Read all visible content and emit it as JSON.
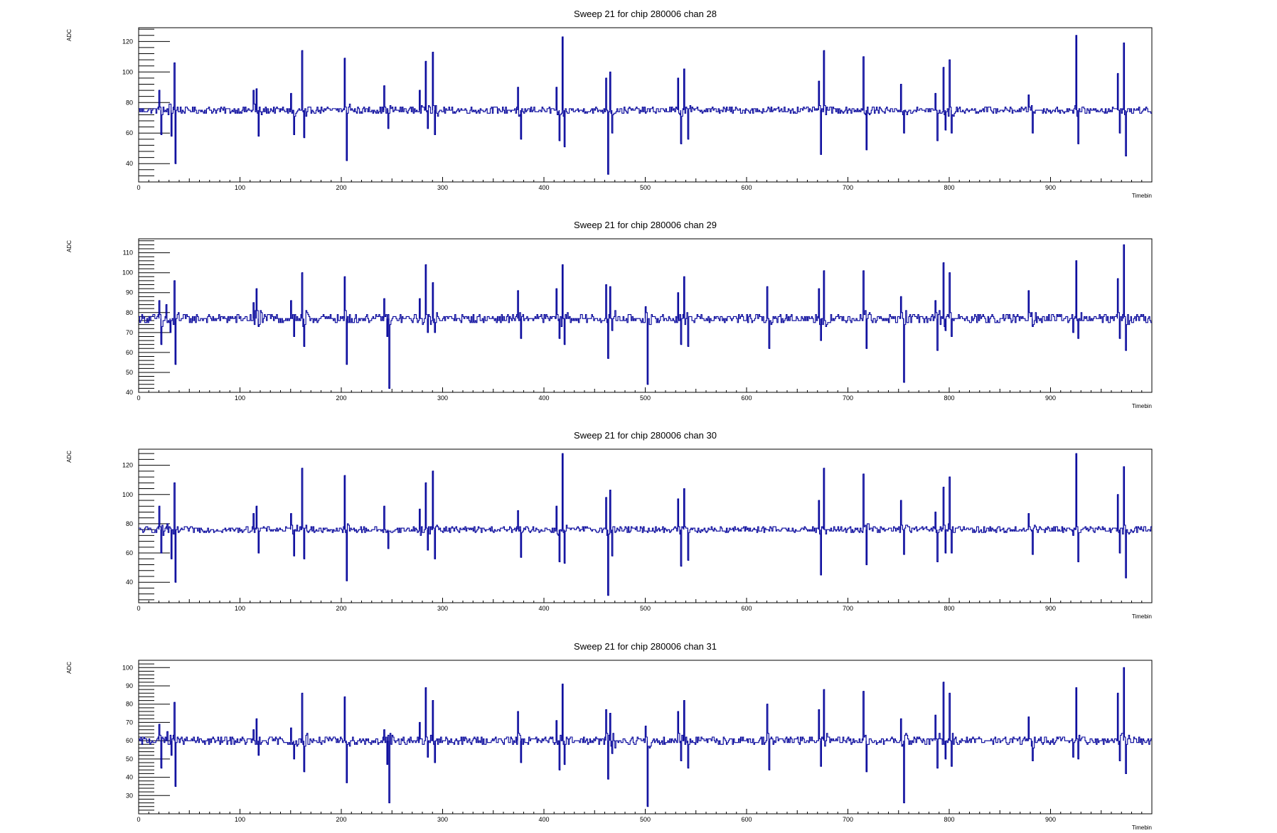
{
  "page": {
    "background": "#ffffff",
    "line_color": "#000099"
  },
  "chart_data": [
    {
      "type": "line",
      "title": "Sweep 21 for chip 280006 chan 28",
      "xlabel": "Timebin",
      "ylabel": "ADC",
      "xlim": [
        0,
        1000
      ],
      "ylim": [
        28,
        129
      ],
      "xticks": [
        0,
        100,
        200,
        300,
        400,
        500,
        600,
        700,
        800,
        900
      ],
      "yticks": [
        40,
        60,
        80,
        100,
        120
      ],
      "baseline": 75,
      "spikes": [
        {
          "x": 20,
          "y": 88
        },
        {
          "x": 22,
          "y": 59
        },
        {
          "x": 28,
          "y": 76
        },
        {
          "x": 32,
          "y": 58
        },
        {
          "x": 35,
          "y": 106
        },
        {
          "x": 36,
          "y": 40
        },
        {
          "x": 113,
          "y": 88
        },
        {
          "x": 116,
          "y": 89
        },
        {
          "x": 118,
          "y": 58
        },
        {
          "x": 150,
          "y": 86
        },
        {
          "x": 153,
          "y": 59
        },
        {
          "x": 161,
          "y": 114
        },
        {
          "x": 163,
          "y": 57
        },
        {
          "x": 203,
          "y": 109
        },
        {
          "x": 205,
          "y": 42
        },
        {
          "x": 242,
          "y": 91
        },
        {
          "x": 246,
          "y": 63
        },
        {
          "x": 277,
          "y": 88
        },
        {
          "x": 283,
          "y": 107
        },
        {
          "x": 285,
          "y": 63
        },
        {
          "x": 290,
          "y": 113
        },
        {
          "x": 292,
          "y": 59
        },
        {
          "x": 374,
          "y": 90
        },
        {
          "x": 377,
          "y": 56
        },
        {
          "x": 412,
          "y": 90
        },
        {
          "x": 415,
          "y": 55
        },
        {
          "x": 418,
          "y": 123
        },
        {
          "x": 420,
          "y": 51
        },
        {
          "x": 461,
          "y": 96
        },
        {
          "x": 463,
          "y": 33
        },
        {
          "x": 465,
          "y": 100
        },
        {
          "x": 467,
          "y": 60
        },
        {
          "x": 532,
          "y": 96
        },
        {
          "x": 535,
          "y": 53
        },
        {
          "x": 538,
          "y": 102
        },
        {
          "x": 542,
          "y": 56
        },
        {
          "x": 671,
          "y": 94
        },
        {
          "x": 673,
          "y": 46
        },
        {
          "x": 676,
          "y": 114
        },
        {
          "x": 715,
          "y": 110
        },
        {
          "x": 718,
          "y": 49
        },
        {
          "x": 752,
          "y": 92
        },
        {
          "x": 755,
          "y": 60
        },
        {
          "x": 786,
          "y": 86
        },
        {
          "x": 788,
          "y": 55
        },
        {
          "x": 794,
          "y": 103
        },
        {
          "x": 796,
          "y": 62
        },
        {
          "x": 800,
          "y": 108
        },
        {
          "x": 802,
          "y": 60
        },
        {
          "x": 878,
          "y": 85
        },
        {
          "x": 882,
          "y": 60
        },
        {
          "x": 922,
          "y": 73
        },
        {
          "x": 925,
          "y": 124
        },
        {
          "x": 927,
          "y": 53
        },
        {
          "x": 966,
          "y": 99
        },
        {
          "x": 968,
          "y": 60
        },
        {
          "x": 972,
          "y": 119
        },
        {
          "x": 974,
          "y": 45
        }
      ]
    },
    {
      "type": "line",
      "title": "Sweep 21 for chip 280006 chan 29",
      "xlabel": "Timebin",
      "ylabel": "ADC",
      "xlim": [
        0,
        1000
      ],
      "ylim": [
        40,
        117
      ],
      "xticks": [
        0,
        100,
        200,
        300,
        400,
        500,
        600,
        700,
        800,
        900
      ],
      "yticks": [
        40,
        50,
        60,
        70,
        80,
        90,
        100,
        110
      ],
      "baseline": 77,
      "spikes": [
        {
          "x": 20,
          "y": 86
        },
        {
          "x": 22,
          "y": 64
        },
        {
          "x": 27,
          "y": 84
        },
        {
          "x": 31,
          "y": 70
        },
        {
          "x": 35,
          "y": 96
        },
        {
          "x": 36,
          "y": 54
        },
        {
          "x": 113,
          "y": 85
        },
        {
          "x": 116,
          "y": 92
        },
        {
          "x": 118,
          "y": 73
        },
        {
          "x": 150,
          "y": 86
        },
        {
          "x": 153,
          "y": 68
        },
        {
          "x": 161,
          "y": 100
        },
        {
          "x": 163,
          "y": 63
        },
        {
          "x": 203,
          "y": 98
        },
        {
          "x": 205,
          "y": 54
        },
        {
          "x": 242,
          "y": 87
        },
        {
          "x": 245,
          "y": 68
        },
        {
          "x": 247,
          "y": 42
        },
        {
          "x": 277,
          "y": 87
        },
        {
          "x": 283,
          "y": 104
        },
        {
          "x": 285,
          "y": 70
        },
        {
          "x": 290,
          "y": 95
        },
        {
          "x": 292,
          "y": 70
        },
        {
          "x": 374,
          "y": 91
        },
        {
          "x": 377,
          "y": 67
        },
        {
          "x": 412,
          "y": 92
        },
        {
          "x": 415,
          "y": 67
        },
        {
          "x": 418,
          "y": 104
        },
        {
          "x": 420,
          "y": 64
        },
        {
          "x": 461,
          "y": 94
        },
        {
          "x": 463,
          "y": 57
        },
        {
          "x": 465,
          "y": 93
        },
        {
          "x": 467,
          "y": 71
        },
        {
          "x": 500,
          "y": 83
        },
        {
          "x": 502,
          "y": 44
        },
        {
          "x": 532,
          "y": 90
        },
        {
          "x": 535,
          "y": 64
        },
        {
          "x": 538,
          "y": 98
        },
        {
          "x": 542,
          "y": 63
        },
        {
          "x": 620,
          "y": 93
        },
        {
          "x": 622,
          "y": 62
        },
        {
          "x": 671,
          "y": 92
        },
        {
          "x": 673,
          "y": 66
        },
        {
          "x": 676,
          "y": 101
        },
        {
          "x": 715,
          "y": 101
        },
        {
          "x": 718,
          "y": 62
        },
        {
          "x": 752,
          "y": 88
        },
        {
          "x": 755,
          "y": 45
        },
        {
          "x": 786,
          "y": 86
        },
        {
          "x": 788,
          "y": 61
        },
        {
          "x": 794,
          "y": 105
        },
        {
          "x": 796,
          "y": 71
        },
        {
          "x": 800,
          "y": 100
        },
        {
          "x": 802,
          "y": 68
        },
        {
          "x": 878,
          "y": 91
        },
        {
          "x": 882,
          "y": 73
        },
        {
          "x": 922,
          "y": 70
        },
        {
          "x": 925,
          "y": 106
        },
        {
          "x": 927,
          "y": 67
        },
        {
          "x": 966,
          "y": 97
        },
        {
          "x": 968,
          "y": 67
        },
        {
          "x": 972,
          "y": 114
        },
        {
          "x": 974,
          "y": 61
        }
      ]
    },
    {
      "type": "line",
      "title": "Sweep 21 for chip 280006 chan 30",
      "xlabel": "Timebin",
      "ylabel": "ADC",
      "xlim": [
        0,
        1000
      ],
      "ylim": [
        26,
        131
      ],
      "xticks": [
        0,
        100,
        200,
        300,
        400,
        500,
        600,
        700,
        800,
        900
      ],
      "yticks": [
        40,
        60,
        80,
        100,
        120
      ],
      "baseline": 76,
      "spikes": [
        {
          "x": 20,
          "y": 92
        },
        {
          "x": 22,
          "y": 60
        },
        {
          "x": 28,
          "y": 80
        },
        {
          "x": 32,
          "y": 56
        },
        {
          "x": 35,
          "y": 108
        },
        {
          "x": 36,
          "y": 40
        },
        {
          "x": 113,
          "y": 87
        },
        {
          "x": 116,
          "y": 92
        },
        {
          "x": 118,
          "y": 60
        },
        {
          "x": 150,
          "y": 87
        },
        {
          "x": 153,
          "y": 58
        },
        {
          "x": 161,
          "y": 118
        },
        {
          "x": 163,
          "y": 56
        },
        {
          "x": 203,
          "y": 113
        },
        {
          "x": 205,
          "y": 41
        },
        {
          "x": 242,
          "y": 92
        },
        {
          "x": 246,
          "y": 63
        },
        {
          "x": 277,
          "y": 90
        },
        {
          "x": 283,
          "y": 108
        },
        {
          "x": 285,
          "y": 62
        },
        {
          "x": 290,
          "y": 116
        },
        {
          "x": 292,
          "y": 56
        },
        {
          "x": 374,
          "y": 89
        },
        {
          "x": 377,
          "y": 57
        },
        {
          "x": 412,
          "y": 92
        },
        {
          "x": 415,
          "y": 54
        },
        {
          "x": 418,
          "y": 128
        },
        {
          "x": 420,
          "y": 53
        },
        {
          "x": 461,
          "y": 98
        },
        {
          "x": 463,
          "y": 31
        },
        {
          "x": 465,
          "y": 103
        },
        {
          "x": 467,
          "y": 58
        },
        {
          "x": 532,
          "y": 97
        },
        {
          "x": 535,
          "y": 51
        },
        {
          "x": 538,
          "y": 104
        },
        {
          "x": 542,
          "y": 55
        },
        {
          "x": 671,
          "y": 96
        },
        {
          "x": 673,
          "y": 45
        },
        {
          "x": 676,
          "y": 118
        },
        {
          "x": 715,
          "y": 114
        },
        {
          "x": 718,
          "y": 52
        },
        {
          "x": 752,
          "y": 96
        },
        {
          "x": 755,
          "y": 59
        },
        {
          "x": 786,
          "y": 88
        },
        {
          "x": 788,
          "y": 54
        },
        {
          "x": 794,
          "y": 105
        },
        {
          "x": 796,
          "y": 60
        },
        {
          "x": 800,
          "y": 112
        },
        {
          "x": 802,
          "y": 60
        },
        {
          "x": 878,
          "y": 87
        },
        {
          "x": 882,
          "y": 59
        },
        {
          "x": 922,
          "y": 72
        },
        {
          "x": 925,
          "y": 128
        },
        {
          "x": 927,
          "y": 54
        },
        {
          "x": 966,
          "y": 100
        },
        {
          "x": 968,
          "y": 60
        },
        {
          "x": 972,
          "y": 119
        },
        {
          "x": 974,
          "y": 43
        }
      ]
    },
    {
      "type": "line",
      "title": "Sweep 21 for chip 280006 chan 31",
      "xlabel": "Timebin",
      "ylabel": "ADC",
      "xlim": [
        0,
        1000
      ],
      "ylim": [
        20,
        104
      ],
      "xticks": [
        0,
        100,
        200,
        300,
        400,
        500,
        600,
        700,
        800,
        900
      ],
      "yticks": [
        30,
        40,
        50,
        60,
        70,
        80,
        90,
        100
      ],
      "baseline": 60,
      "spikes": [
        {
          "x": 20,
          "y": 69
        },
        {
          "x": 22,
          "y": 45
        },
        {
          "x": 28,
          "y": 65
        },
        {
          "x": 32,
          "y": 52
        },
        {
          "x": 35,
          "y": 81
        },
        {
          "x": 36,
          "y": 35
        },
        {
          "x": 113,
          "y": 66
        },
        {
          "x": 116,
          "y": 72
        },
        {
          "x": 118,
          "y": 52
        },
        {
          "x": 150,
          "y": 67
        },
        {
          "x": 153,
          "y": 50
        },
        {
          "x": 161,
          "y": 86
        },
        {
          "x": 163,
          "y": 43
        },
        {
          "x": 203,
          "y": 84
        },
        {
          "x": 205,
          "y": 37
        },
        {
          "x": 242,
          "y": 66
        },
        {
          "x": 245,
          "y": 47
        },
        {
          "x": 247,
          "y": 26
        },
        {
          "x": 277,
          "y": 70
        },
        {
          "x": 283,
          "y": 89
        },
        {
          "x": 285,
          "y": 51
        },
        {
          "x": 290,
          "y": 82
        },
        {
          "x": 292,
          "y": 48
        },
        {
          "x": 374,
          "y": 76
        },
        {
          "x": 377,
          "y": 48
        },
        {
          "x": 412,
          "y": 71
        },
        {
          "x": 415,
          "y": 44
        },
        {
          "x": 418,
          "y": 91
        },
        {
          "x": 420,
          "y": 47
        },
        {
          "x": 461,
          "y": 77
        },
        {
          "x": 463,
          "y": 39
        },
        {
          "x": 465,
          "y": 75
        },
        {
          "x": 467,
          "y": 53
        },
        {
          "x": 500,
          "y": 68
        },
        {
          "x": 502,
          "y": 24
        },
        {
          "x": 532,
          "y": 76
        },
        {
          "x": 535,
          "y": 49
        },
        {
          "x": 538,
          "y": 82
        },
        {
          "x": 542,
          "y": 45
        },
        {
          "x": 620,
          "y": 80
        },
        {
          "x": 622,
          "y": 44
        },
        {
          "x": 671,
          "y": 77
        },
        {
          "x": 673,
          "y": 46
        },
        {
          "x": 676,
          "y": 88
        },
        {
          "x": 715,
          "y": 87
        },
        {
          "x": 718,
          "y": 43
        },
        {
          "x": 752,
          "y": 72
        },
        {
          "x": 755,
          "y": 26
        },
        {
          "x": 786,
          "y": 74
        },
        {
          "x": 788,
          "y": 45
        },
        {
          "x": 794,
          "y": 92
        },
        {
          "x": 796,
          "y": 50
        },
        {
          "x": 800,
          "y": 86
        },
        {
          "x": 802,
          "y": 46
        },
        {
          "x": 878,
          "y": 73
        },
        {
          "x": 882,
          "y": 49
        },
        {
          "x": 922,
          "y": 51
        },
        {
          "x": 925,
          "y": 89
        },
        {
          "x": 927,
          "y": 50
        },
        {
          "x": 966,
          "y": 86
        },
        {
          "x": 968,
          "y": 49
        },
        {
          "x": 972,
          "y": 100
        },
        {
          "x": 974,
          "y": 42
        }
      ]
    }
  ]
}
